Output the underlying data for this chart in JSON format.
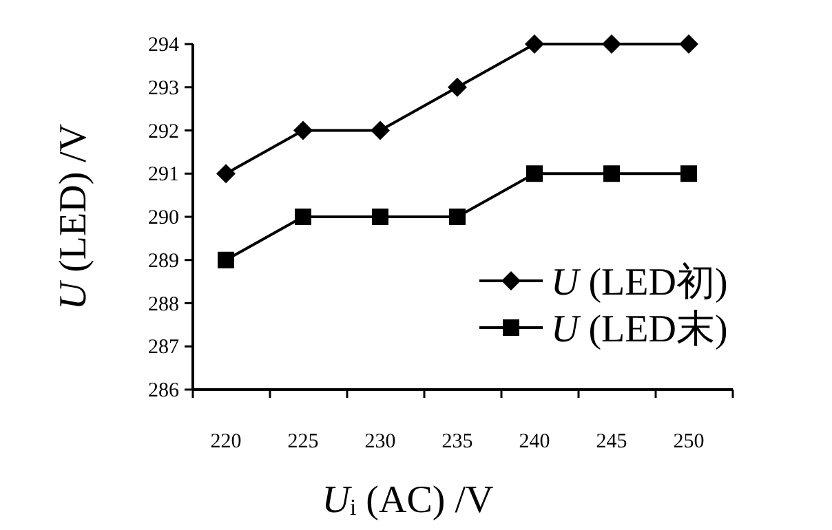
{
  "chart_data": {
    "type": "line",
    "xlabel": "U$_{i}$ (AC) /V",
    "ylabel": "U (LED) /V",
    "categories": [
      "220",
      "225",
      "230",
      "235",
      "240",
      "245",
      "250"
    ],
    "series": [
      {
        "name": "U (LED初)",
        "color": "#000000",
        "marker": "diamond",
        "values": [
          291,
          292,
          292,
          293,
          294,
          294,
          294
        ]
      },
      {
        "name": "U (LED末)",
        "color": "#000000",
        "marker": "square",
        "values": [
          289,
          290,
          290,
          290,
          291,
          291,
          291
        ]
      }
    ],
    "ylim": [
      286,
      294
    ],
    "yticks": [
      286,
      287,
      288,
      289,
      290,
      291,
      292,
      293,
      294
    ],
    "grid": false,
    "legend": "bottom right",
    "line_style": "solid"
  }
}
